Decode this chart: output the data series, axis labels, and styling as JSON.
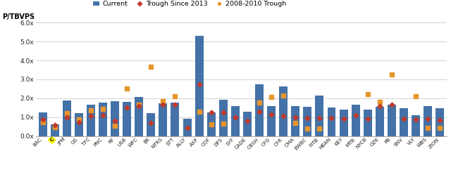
{
  "categories": [
    "BAC",
    "C",
    "JPM",
    "GS",
    "TFC",
    "PNC",
    "RF",
    "USB",
    "WFC",
    "BK",
    "NTRS",
    "STT",
    "ALLY",
    "AXP",
    "COF",
    "DFS",
    "SYF",
    "CADE",
    "CBSH",
    "CFG",
    "CFR",
    "CMA",
    "EWBC",
    "FITB",
    "HBAN",
    "KEY",
    "MTB",
    "NYCB",
    "OZK",
    "PB",
    "SNV",
    "VLY",
    "WBS",
    "ZION"
  ],
  "current": [
    1.27,
    0.62,
    1.9,
    1.2,
    1.65,
    1.78,
    1.83,
    1.8,
    2.07,
    1.22,
    1.72,
    1.77,
    0.93,
    5.32,
    1.27,
    1.93,
    1.58,
    1.3,
    2.75,
    1.6,
    2.63,
    1.58,
    1.55,
    2.13,
    1.5,
    1.4,
    1.65,
    1.4,
    1.55,
    1.65,
    1.47,
    1.1,
    1.57,
    1.47
  ],
  "trough_since_2013": [
    0.87,
    0.58,
    0.98,
    0.72,
    1.08,
    1.1,
    0.8,
    1.52,
    1.6,
    0.7,
    1.65,
    1.65,
    0.42,
    2.73,
    1.27,
    1.27,
    1.0,
    0.82,
    1.28,
    1.15,
    1.05,
    1.0,
    0.95,
    0.97,
    0.97,
    0.92,
    1.1,
    0.9,
    1.6,
    1.65,
    0.9,
    0.88,
    0.92,
    0.85
  ],
  "trough_2008_2010": [
    0.72,
    0.48,
    1.2,
    0.87,
    1.38,
    1.42,
    0.55,
    2.5,
    1.65,
    3.65,
    1.85,
    2.1,
    null,
    1.3,
    0.62,
    0.65,
    null,
    null,
    1.78,
    2.08,
    2.13,
    0.7,
    0.38,
    0.4,
    null,
    null,
    null,
    2.22,
    1.82,
    3.25,
    null,
    2.12,
    0.42,
    0.45
  ],
  "bar_color": "#4472A8",
  "trough_color": "#C0392B",
  "trough2008_color": "#E8952A",
  "ylabel_text": "P/TBVPS",
  "ylim": [
    0,
    6.0
  ],
  "yticks": [
    0.0,
    1.0,
    2.0,
    3.0,
    4.0,
    5.0,
    6.0
  ],
  "ytick_labels": [
    "0.0x",
    "1.0x",
    "2.0x",
    "3.0x",
    "4.0x",
    "5.0x",
    "6.0x"
  ],
  "background_color": "#FFFFFF",
  "c_highlight_color": "#F5F500",
  "legend_current": "Current",
  "legend_trough": "Trough Since 2013",
  "legend_trough2008": "2008-2010 Trough"
}
